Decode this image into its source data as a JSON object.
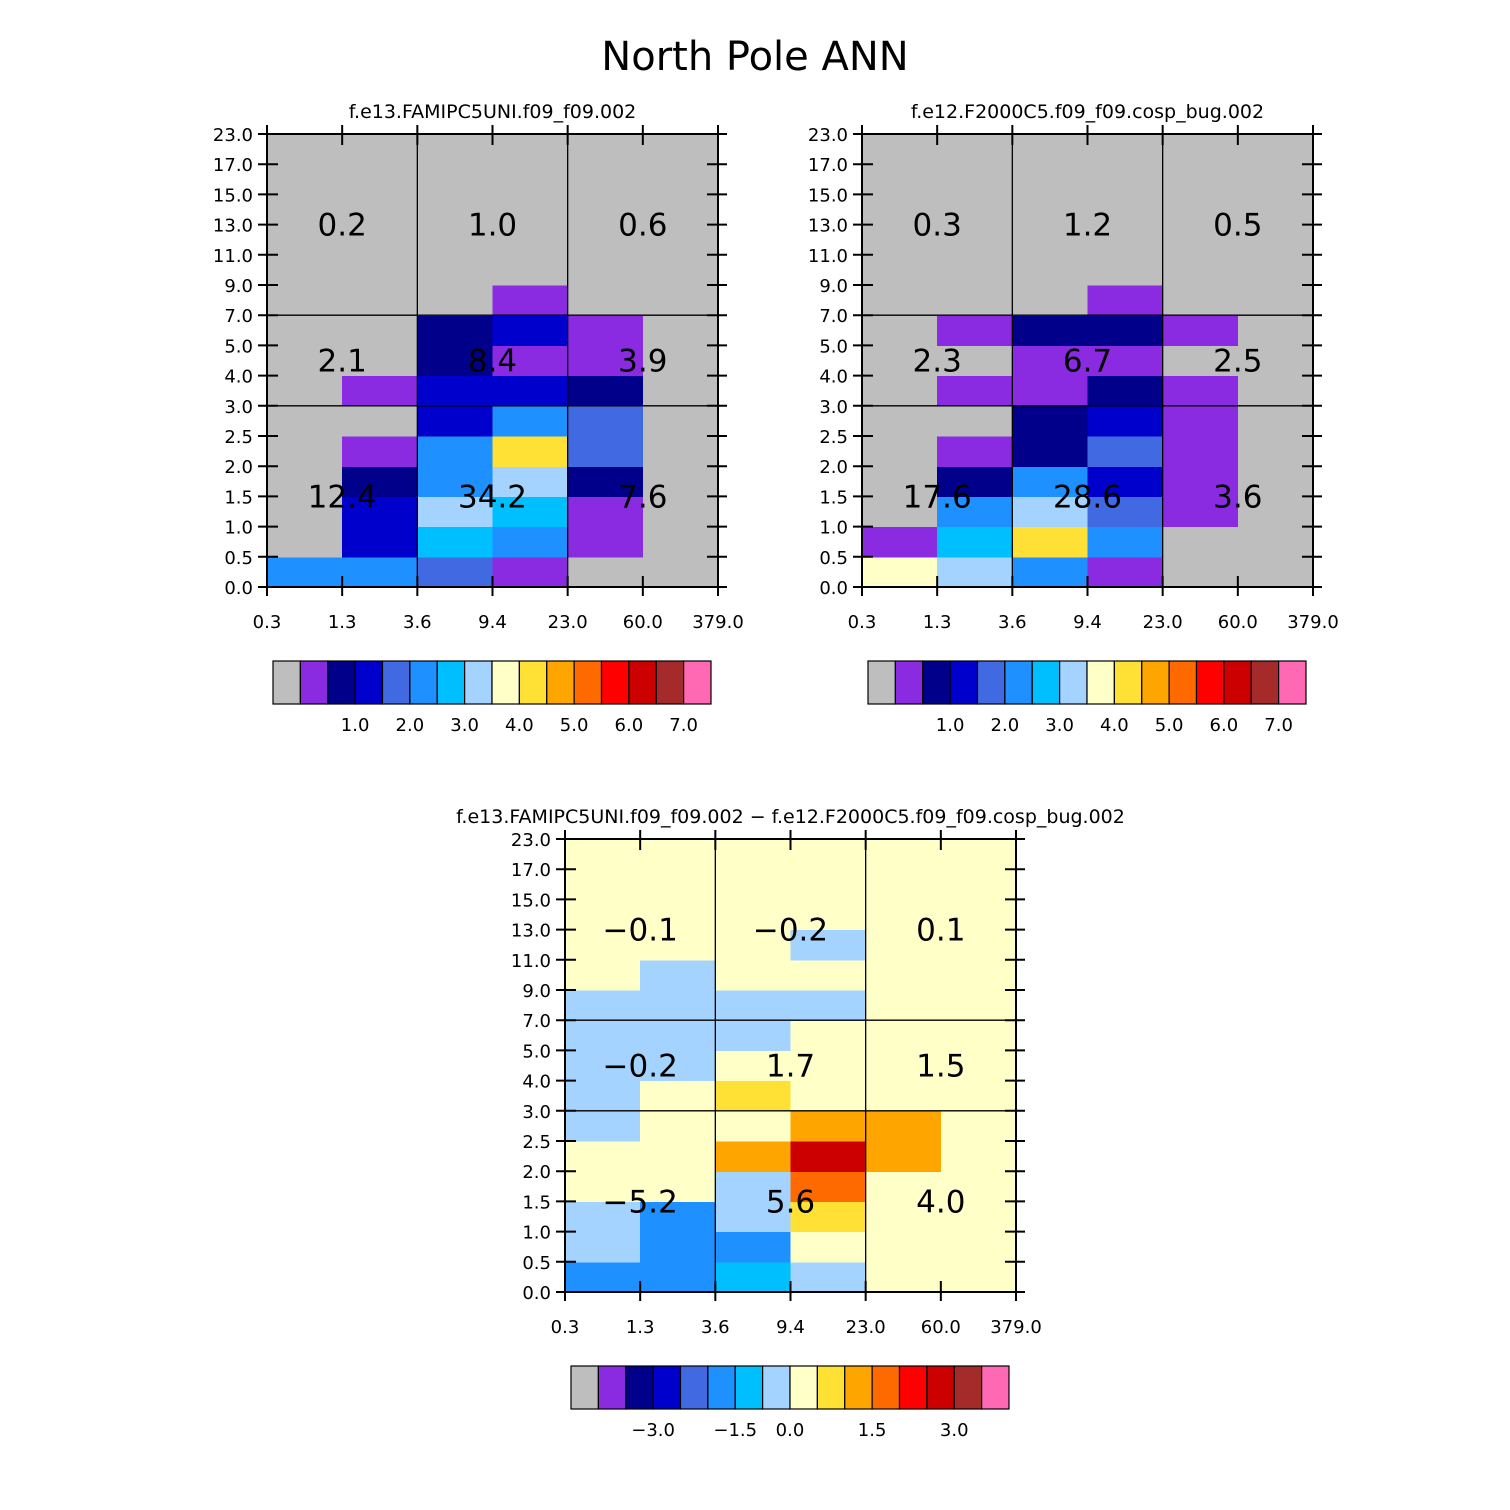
{
  "title": "North Pole ANN",
  "palette": {
    "gray": "#BEBEBE",
    "purple": "#8A2BE2",
    "navy": "#00008B",
    "blue": "#0000CD",
    "royal": "#4169E1",
    "dodger": "#1E90FF",
    "sky": "#00BFFF",
    "light": "#A4D3FF",
    "cream": "#FFFFC8",
    "gold": "#FFE135",
    "orange": "#FFA500",
    "dorange": "#FF6A00",
    "red": "#FF0000",
    "dred": "#CD0000",
    "brown": "#A52A2A",
    "pink": "#FF69B4"
  },
  "colorbar_colors": [
    "gray",
    "purple",
    "navy",
    "blue",
    "royal",
    "dodger",
    "sky",
    "light",
    "cream",
    "gold",
    "orange",
    "dorange",
    "red",
    "dred",
    "brown",
    "pink"
  ],
  "chart_data": [
    {
      "type": "heatmap",
      "title": "f.e13.FAMIPC5UNI.f09_f09.002",
      "x_ticks": [
        "0.3",
        "1.3",
        "3.6",
        "9.4",
        "23.0",
        "60.0",
        "379.0"
      ],
      "y_ticks": [
        "0.0",
        "0.5",
        "1.0",
        "1.5",
        "2.0",
        "2.5",
        "3.0",
        "4.0",
        "5.0",
        "7.0",
        "9.0",
        "11.0",
        "13.0",
        "15.0",
        "17.0",
        "23.0"
      ],
      "cells": [
        [
          "dodger",
          "dodger",
          "royal",
          "purple",
          "gray",
          "gray"
        ],
        [
          "gray",
          "blue",
          "sky",
          "dodger",
          "purple",
          "gray"
        ],
        [
          "gray",
          "blue",
          "light",
          "sky",
          "purple",
          "gray"
        ],
        [
          "gray",
          "navy",
          "dodger",
          "light",
          "navy",
          "gray"
        ],
        [
          "gray",
          "purple",
          "dodger",
          "gold",
          "royal",
          "gray"
        ],
        [
          "gray",
          "gray",
          "blue",
          "dodger",
          "royal",
          "gray"
        ],
        [
          "gray",
          "purple",
          "blue",
          "blue",
          "navy",
          "gray"
        ],
        [
          "gray",
          "gray",
          "navy",
          "purple",
          "purple",
          "gray"
        ],
        [
          "gray",
          "gray",
          "navy",
          "blue",
          "purple",
          "gray"
        ],
        [
          "gray",
          "gray",
          "gray",
          "purple",
          "gray",
          "gray"
        ],
        [
          "gray",
          "gray",
          "gray",
          "gray",
          "gray",
          "gray"
        ],
        [
          "gray",
          "gray",
          "gray",
          "gray",
          "gray",
          "gray"
        ],
        [
          "gray",
          "gray",
          "gray",
          "gray",
          "gray",
          "gray"
        ],
        [
          "gray",
          "gray",
          "gray",
          "gray",
          "gray",
          "gray"
        ],
        [
          "gray",
          "gray",
          "gray",
          "gray",
          "gray",
          "gray"
        ]
      ],
      "totals": [
        [
          "12.4",
          "34.2",
          "7.6"
        ],
        [
          "2.1",
          "8.4",
          "3.9"
        ],
        [
          "0.2",
          "1.0",
          "0.6"
        ]
      ],
      "colorbar_labels": [
        "1.0",
        "2.0",
        "3.0",
        "4.0",
        "5.0",
        "6.0",
        "7.0"
      ]
    },
    {
      "type": "heatmap",
      "title": "f.e12.F2000C5.f09_f09.cosp_bug.002",
      "x_ticks": [
        "0.3",
        "1.3",
        "3.6",
        "9.4",
        "23.0",
        "60.0",
        "379.0"
      ],
      "y_ticks": [
        "0.0",
        "0.5",
        "1.0",
        "1.5",
        "2.0",
        "2.5",
        "3.0",
        "4.0",
        "5.0",
        "7.0",
        "9.0",
        "11.0",
        "13.0",
        "15.0",
        "17.0",
        "23.0"
      ],
      "cells": [
        [
          "cream",
          "light",
          "dodger",
          "purple",
          "gray",
          "gray"
        ],
        [
          "purple",
          "sky",
          "gold",
          "dodger",
          "gray",
          "gray"
        ],
        [
          "gray",
          "dodger",
          "light",
          "royal",
          "purple",
          "gray"
        ],
        [
          "gray",
          "navy",
          "dodger",
          "blue",
          "purple",
          "gray"
        ],
        [
          "gray",
          "purple",
          "navy",
          "royal",
          "purple",
          "gray"
        ],
        [
          "gray",
          "gray",
          "navy",
          "blue",
          "purple",
          "gray"
        ],
        [
          "gray",
          "purple",
          "purple",
          "navy",
          "purple",
          "gray"
        ],
        [
          "gray",
          "gray",
          "purple",
          "purple",
          "gray",
          "gray"
        ],
        [
          "gray",
          "purple",
          "navy",
          "navy",
          "purple",
          "gray"
        ],
        [
          "gray",
          "gray",
          "gray",
          "purple",
          "gray",
          "gray"
        ],
        [
          "gray",
          "gray",
          "gray",
          "gray",
          "gray",
          "gray"
        ],
        [
          "gray",
          "gray",
          "gray",
          "gray",
          "gray",
          "gray"
        ],
        [
          "gray",
          "gray",
          "gray",
          "gray",
          "gray",
          "gray"
        ],
        [
          "gray",
          "gray",
          "gray",
          "gray",
          "gray",
          "gray"
        ],
        [
          "gray",
          "gray",
          "gray",
          "gray",
          "gray",
          "gray"
        ]
      ],
      "totals": [
        [
          "17.6",
          "28.6",
          "3.6"
        ],
        [
          "2.3",
          "6.7",
          "2.5"
        ],
        [
          "0.3",
          "1.2",
          "0.5"
        ]
      ],
      "colorbar_labels": [
        "1.0",
        "2.0",
        "3.0",
        "4.0",
        "5.0",
        "6.0",
        "7.0"
      ]
    },
    {
      "type": "heatmap",
      "title": "f.e13.FAMIPC5UNI.f09_f09.002 − f.e12.F2000C5.f09_f09.cosp_bug.002",
      "x_ticks": [
        "0.3",
        "1.3",
        "3.6",
        "9.4",
        "23.0",
        "60.0",
        "379.0"
      ],
      "y_ticks": [
        "0.0",
        "0.5",
        "1.0",
        "1.5",
        "2.0",
        "2.5",
        "3.0",
        "4.0",
        "5.0",
        "7.0",
        "9.0",
        "11.0",
        "13.0",
        "15.0",
        "17.0",
        "23.0"
      ],
      "cells": [
        [
          "dodger",
          "dodger",
          "sky",
          "light",
          "cream",
          "cream"
        ],
        [
          "light",
          "dodger",
          "dodger",
          "cream",
          "cream",
          "cream"
        ],
        [
          "light",
          "dodger",
          "light",
          "gold",
          "cream",
          "cream"
        ],
        [
          "cream",
          "cream",
          "light",
          "dorange",
          "cream",
          "cream"
        ],
        [
          "cream",
          "cream",
          "orange",
          "dred",
          "orange",
          "cream"
        ],
        [
          "light",
          "cream",
          "cream",
          "orange",
          "orange",
          "cream"
        ],
        [
          "light",
          "cream",
          "gold",
          "cream",
          "cream",
          "cream"
        ],
        [
          "light",
          "light",
          "cream",
          "cream",
          "cream",
          "cream"
        ],
        [
          "light",
          "light",
          "light",
          "cream",
          "cream",
          "cream"
        ],
        [
          "light",
          "light",
          "light",
          "light",
          "cream",
          "cream"
        ],
        [
          "cream",
          "light",
          "cream",
          "cream",
          "cream",
          "cream"
        ],
        [
          "cream",
          "cream",
          "cream",
          "light",
          "cream",
          "cream"
        ],
        [
          "cream",
          "cream",
          "cream",
          "cream",
          "cream",
          "cream"
        ],
        [
          "cream",
          "cream",
          "cream",
          "cream",
          "cream",
          "cream"
        ],
        [
          "cream",
          "cream",
          "cream",
          "cream",
          "cream",
          "cream"
        ]
      ],
      "totals": [
        [
          "−5.2",
          "5.6",
          "4.0"
        ],
        [
          "−0.2",
          "1.7",
          "1.5"
        ],
        [
          "−0.1",
          "−0.2",
          "0.1"
        ]
      ],
      "colorbar_labels": [
        "−3.0",
        "−1.5",
        "0.0",
        "1.5",
        "3.0"
      ]
    }
  ]
}
